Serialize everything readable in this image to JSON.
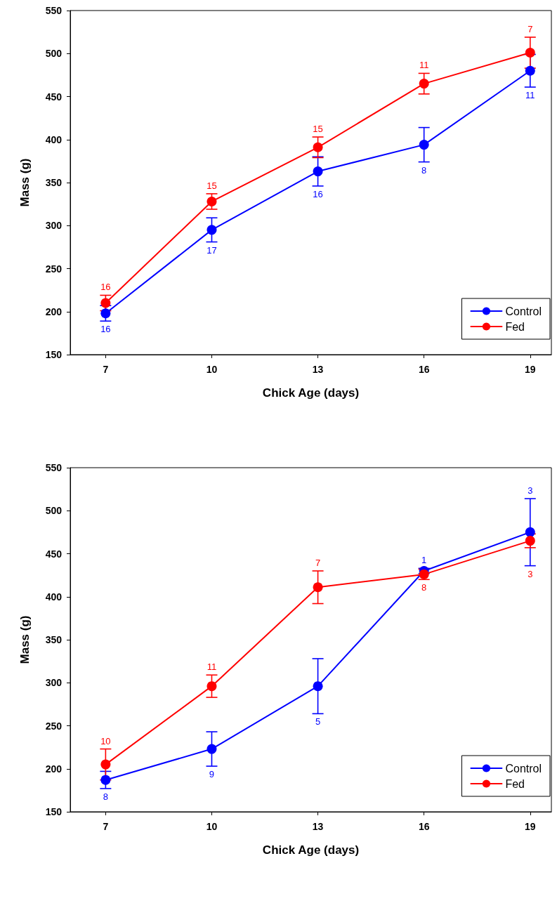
{
  "chart_data": [
    {
      "type": "line",
      "xlabel": "Chick Age (days)",
      "ylabel": "Mass (g)",
      "x": [
        7,
        10,
        13,
        16,
        19
      ],
      "xlim": [
        6,
        19.6
      ],
      "xticks": [
        7,
        10,
        13,
        16,
        19
      ],
      "ylim": [
        150,
        550
      ],
      "yticks": [
        150,
        200,
        250,
        300,
        350,
        400,
        450,
        500,
        550
      ],
      "grid": false,
      "legend": "bottom right",
      "marker": "circle",
      "line_style": "solid",
      "series": [
        {
          "name": "Control",
          "color": "#0000ff",
          "values": [
            198,
            295,
            363,
            394,
            480
          ],
          "errors": [
            9,
            14,
            17,
            20,
            19
          ]
        },
        {
          "name": "Fed",
          "color": "#ff0000",
          "values": [
            210,
            328,
            391,
            465,
            501
          ],
          "errors": [
            9,
            9,
            12,
            12,
            18
          ]
        }
      ],
      "annotations": [
        {
          "text": "16",
          "x": 7,
          "y": 189
        },
        {
          "text": "17",
          "x": 10,
          "y": 281
        },
        {
          "text": "16",
          "x": 13,
          "y": 346
        },
        {
          "text": "8",
          "x": 16,
          "y": 374
        },
        {
          "text": "11",
          "x": 19,
          "y": 461
        },
        {
          "text": "16",
          "x": 7,
          "y": 219
        },
        {
          "text": "15",
          "x": 10,
          "y": 337
        },
        {
          "text": "15",
          "x": 13,
          "y": 403
        },
        {
          "text": "11",
          "x": 16,
          "y": 477
        },
        {
          "text": "7",
          "x": 19,
          "y": 519
        }
      ]
    },
    {
      "type": "line",
      "xlabel": "Chick Age (days)",
      "ylabel": "Mass (g)",
      "x": [
        7,
        10,
        13,
        16,
        19
      ],
      "xlim": [
        6,
        19.6
      ],
      "xticks": [
        7,
        10,
        13,
        16,
        19
      ],
      "ylim": [
        150,
        550
      ],
      "yticks": [
        150,
        200,
        250,
        300,
        350,
        400,
        450,
        500,
        550
      ],
      "grid": false,
      "legend": "bottom right",
      "marker": "circle",
      "line_style": "solid",
      "series": [
        {
          "name": "Control",
          "color": "#0000ff",
          "values": [
            187,
            223,
            296,
            430,
            475
          ],
          "errors": [
            10,
            20,
            32,
            3,
            39
          ]
        },
        {
          "name": "Fed",
          "color": "#ff0000",
          "values": [
            205,
            296,
            411,
            426,
            465
          ],
          "errors": [
            18,
            13,
            19,
            6,
            8
          ]
        }
      ],
      "annotations": [
        {
          "text": "8",
          "x": 7,
          "y": 177
        },
        {
          "text": "9",
          "x": 10,
          "y": 203
        },
        {
          "text": "5",
          "x": 13,
          "y": 264
        },
        {
          "text": "1",
          "x": 16,
          "y": 433
        },
        {
          "text": "3",
          "x": 19,
          "y": 514
        },
        {
          "text": "10",
          "x": 7,
          "y": 223
        },
        {
          "text": "11",
          "x": 10,
          "y": 309
        },
        {
          "text": "7",
          "x": 13,
          "y": 430
        },
        {
          "text": "8",
          "x": 16,
          "y": 420
        },
        {
          "text": "3",
          "x": 19,
          "y": 436
        }
      ]
    }
  ]
}
